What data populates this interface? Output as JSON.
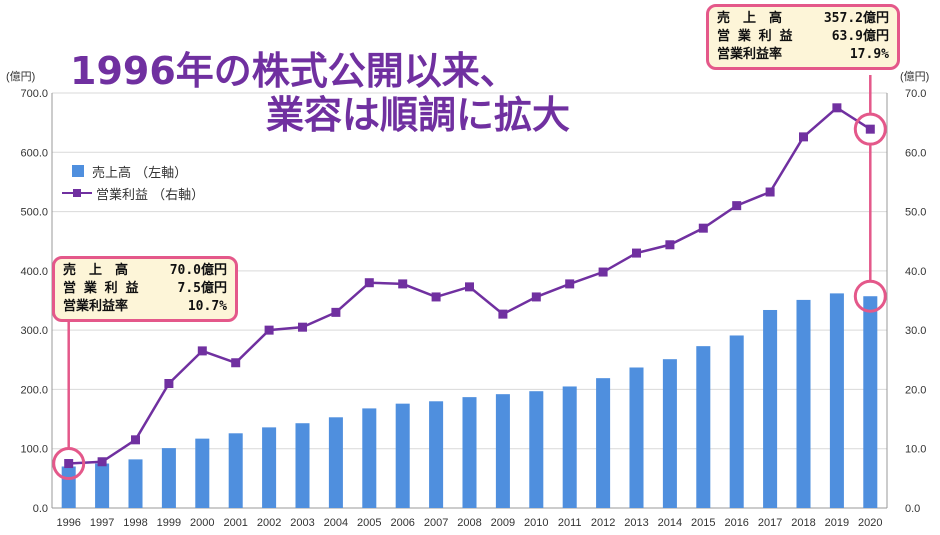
{
  "headline": {
    "line1": "1996年の株式公開以来、",
    "line2": "業容は順調に拡大"
  },
  "units": {
    "left": "(億円)",
    "right": "(億円)"
  },
  "legend": {
    "sales": "売上高 （左軸）",
    "op_profit": "営業利益 （右軸）"
  },
  "callout_1996": {
    "rows": [
      {
        "label": "売　上　高",
        "value": "70.0億円"
      },
      {
        "label": "営 業 利 益",
        "value": "7.5億円"
      },
      {
        "label": "営業利益率",
        "value": "10.7%"
      }
    ]
  },
  "callout_2020": {
    "rows": [
      {
        "label": "売　上　高",
        "value": "357.2億円"
      },
      {
        "label": "営 業 利 益",
        "value": "63.9億円"
      },
      {
        "label": "営業利益率",
        "value": "17.9%"
      }
    ]
  },
  "colors": {
    "bar": "#4f8fde",
    "line": "#7030a0",
    "callout_border": "#e4588a",
    "callout_fill": "#fdf5d8",
    "headline": "#7030a0"
  },
  "chart_data": {
    "type": "bar+line",
    "categories": [
      "1996",
      "1997",
      "1998",
      "1999",
      "2000",
      "2001",
      "2002",
      "2003",
      "2004",
      "2005",
      "2006",
      "2007",
      "2008",
      "2009",
      "2010",
      "2011",
      "2012",
      "2013",
      "2014",
      "2015",
      "2016",
      "2017",
      "2018",
      "2019",
      "2020"
    ],
    "series": [
      {
        "name": "売上高 （左軸）",
        "type": "bar",
        "axis": "left",
        "values": [
          70.0,
          75,
          82,
          101,
          117,
          126,
          136,
          143,
          153,
          168,
          176,
          180,
          187,
          192,
          197,
          205,
          219,
          237,
          251,
          273,
          291,
          334,
          351,
          362,
          357.2
        ]
      },
      {
        "name": "営業利益 （右軸）",
        "type": "line",
        "axis": "right",
        "values": [
          7.5,
          7.8,
          11.5,
          21.0,
          26.5,
          24.5,
          30.0,
          30.5,
          33.0,
          38.0,
          37.8,
          35.6,
          37.3,
          32.7,
          35.6,
          37.8,
          39.8,
          43.0,
          44.4,
          47.2,
          51.0,
          53.3,
          62.6,
          67.5,
          63.9
        ]
      }
    ],
    "ylim_left": [
      0,
      700
    ],
    "ylim_right": [
      0,
      70
    ],
    "left_ticks": [
      "0.0",
      "100.0",
      "200.0",
      "300.0",
      "400.0",
      "500.0",
      "600.0",
      "700.0"
    ],
    "right_ticks": [
      "0.0",
      "10.0",
      "20.0",
      "30.0",
      "40.0",
      "50.0",
      "60.0",
      "70.0"
    ],
    "grid": true,
    "highlight": [
      "1996",
      "2020"
    ]
  }
}
